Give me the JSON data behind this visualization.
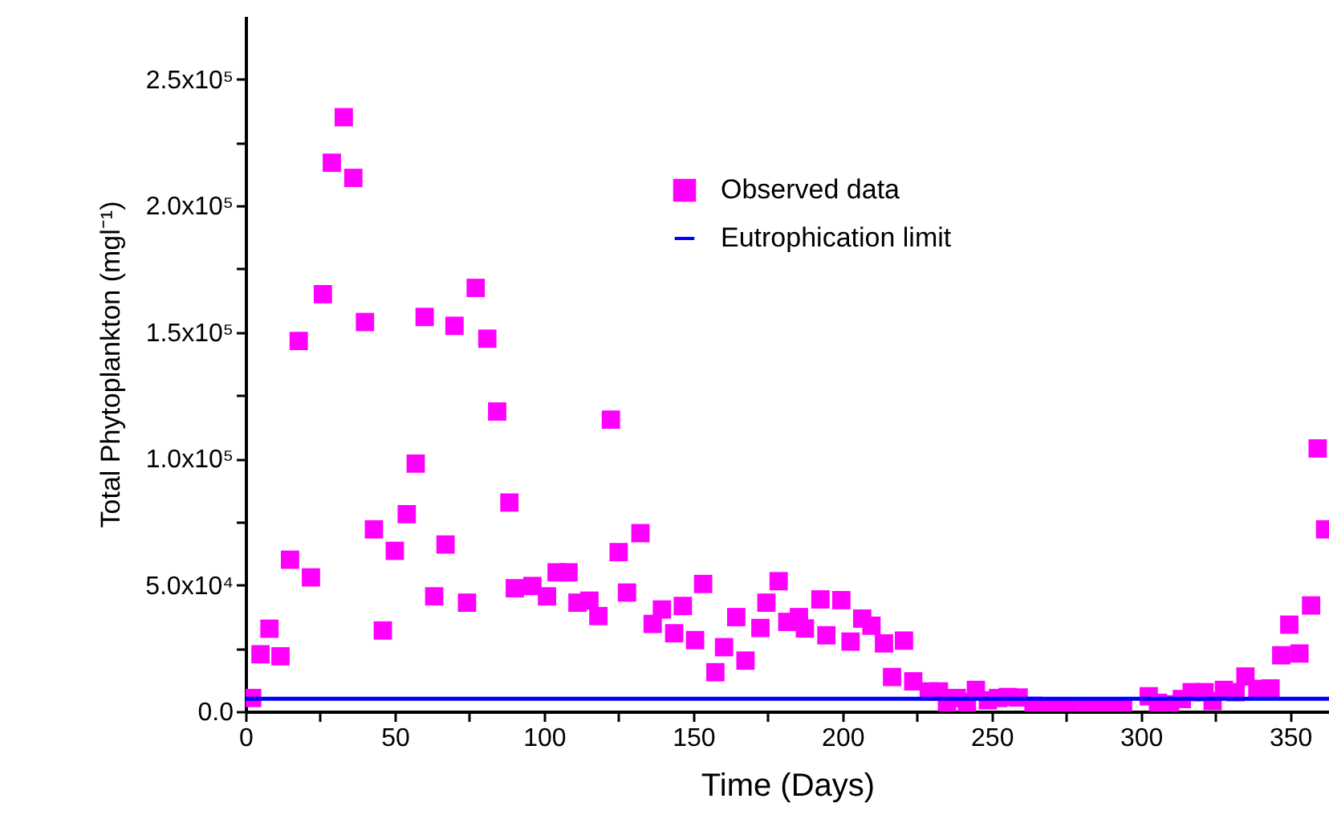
{
  "chart_data": {
    "type": "scatter",
    "xlabel": "Time (Days)",
    "ylabel": "Total Phytoplankton (mgl⁻¹)",
    "xlim": [
      0,
      363
    ],
    "ylim": [
      0,
      275000
    ],
    "xticks": [
      0,
      {
        "value": 25,
        "label": null
      },
      50,
      {
        "value": 75,
        "label": null
      },
      100,
      {
        "value": 125,
        "label": null
      },
      150,
      {
        "value": 175,
        "label": null
      },
      200,
      {
        "value": 225,
        "label": null
      },
      250,
      {
        "value": 275,
        "label": null
      },
      300,
      {
        "value": 325,
        "label": null
      },
      350
    ],
    "yticks": [
      {
        "value": 0,
        "label": "0.0"
      },
      {
        "value": 25000,
        "label": null
      },
      {
        "value": 50000,
        "label": "5.0x10⁴"
      },
      {
        "value": 75000,
        "label": null
      },
      {
        "value": 100000,
        "label": "1.0x10⁵"
      },
      {
        "value": 125000,
        "label": null
      },
      {
        "value": 150000,
        "label": "1.5x10⁵"
      },
      {
        "value": 175000,
        "label": null
      },
      {
        "value": 200000,
        "label": "2.0x10⁵"
      },
      {
        "value": 225000,
        "label": null
      },
      {
        "value": 250000,
        "label": "2.5x10⁵"
      }
    ],
    "marker": "square",
    "legend": "top right",
    "series": [
      {
        "name": "Observed data",
        "color": "#ff00ff",
        "x": [
          2.2,
          5,
          8,
          11.7,
          14.9,
          17.8,
          21.9,
          25.9,
          28.9,
          32.9,
          36.1,
          40,
          43,
          46,
          50,
          54,
          57,
          60,
          63.2,
          67,
          70,
          74.2,
          77.1,
          81,
          84.3,
          88.4,
          90.2,
          96.1,
          101,
          104.2,
          108.2,
          111.2,
          115.2,
          118.2,
          122.4,
          125,
          127.8,
          132.3,
          136.4,
          139.5,
          143.6,
          146.5,
          150.6,
          153.3,
          157.4,
          160.3,
          164.4,
          167.5,
          172.5,
          174.5,
          178.6,
          181.5,
          185.4,
          187.4,
          192.6,
          194.6,
          199.6,
          202.7,
          206.6,
          209.7,
          213.9,
          216.6,
          220.6,
          223.7,
          228.9,
          232.3,
          235,
          238.3,
          241.7,
          244.7,
          248.7,
          252.1,
          255.4,
          259,
          264,
          270,
          276,
          282,
          288,
          294,
          302.6,
          305.7,
          309.8,
          313.7,
          317,
          321.3,
          324,
          327.8,
          331.7,
          335,
          339,
          343.4,
          347,
          349.7,
          353.1,
          357,
          359.2,
          361.7
        ],
        "values": [
          5300,
          22600,
          32700,
          21800,
          60000,
          146500,
          53000,
          165000,
          217000,
          235000,
          211000,
          154000,
          72000,
          32000,
          63500,
          78000,
          98000,
          156000,
          45500,
          66000,
          152500,
          43000,
          167500,
          147400,
          118600,
          82600,
          48700,
          49600,
          45500,
          55000,
          55000,
          43000,
          43800,
          37700,
          115400,
          63000,
          47000,
          70500,
          34600,
          40300,
          30900,
          41700,
          28200,
          50400,
          15500,
          25400,
          37300,
          20100,
          33000,
          43000,
          51500,
          35400,
          37300,
          32800,
          44300,
          30100,
          44000,
          27600,
          36700,
          33900,
          26900,
          13600,
          28000,
          11900,
          7900,
          7900,
          3200,
          5300,
          3600,
          8500,
          4400,
          5300,
          5700,
          5500,
          2200,
          2000,
          2000,
          2000,
          2000,
          2000,
          6000,
          3400,
          2800,
          4900,
          7600,
          7600,
          4100,
          8500,
          7600,
          13800,
          8900,
          9100,
          22200,
          34300,
          22900,
          41900,
          104000,
          72000
        ]
      }
    ],
    "ref_lines": [
      {
        "axis": "y",
        "value": 5000,
        "label": "Eutrophication limit",
        "color": "#0000ff"
      }
    ]
  }
}
